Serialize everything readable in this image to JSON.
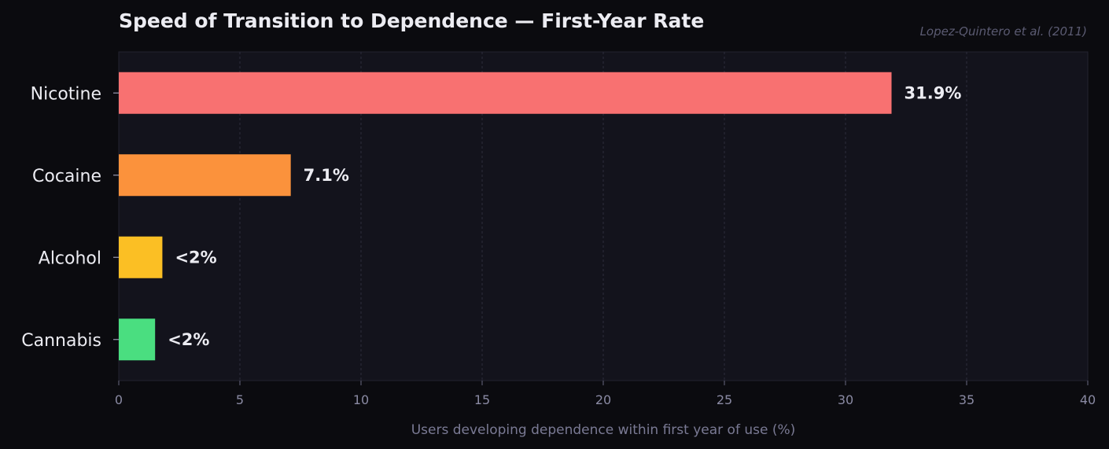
{
  "chart_data": {
    "type": "bar",
    "orientation": "horizontal",
    "title": "Speed of Transition to Dependence — First-Year Rate",
    "source_note": "Lopez-Quintero et al. (2011)",
    "xlabel": "Users developing dependence within first year of use (%)",
    "ylabel": "",
    "xlim": [
      0,
      40
    ],
    "xticks": [
      0,
      5,
      10,
      15,
      20,
      25,
      30,
      35,
      40
    ],
    "grid": "vertical dashed",
    "categories": [
      "Nicotine",
      "Cocaine",
      "Alcohol",
      "Cannabis"
    ],
    "values": [
      31.9,
      7.1,
      1.8,
      1.5
    ],
    "value_labels": [
      "31.9%",
      "7.1%",
      "<2%",
      "<2%"
    ],
    "colors": [
      "#f87171",
      "#fb923c",
      "#fbbf24",
      "#4ade80"
    ]
  },
  "style": {
    "background": "#0b0b0f",
    "plot_background": "#13131c",
    "grid_color": "#2c2c3c",
    "text_color": "#ececf2",
    "muted_text_color": "#8a8aa3"
  }
}
